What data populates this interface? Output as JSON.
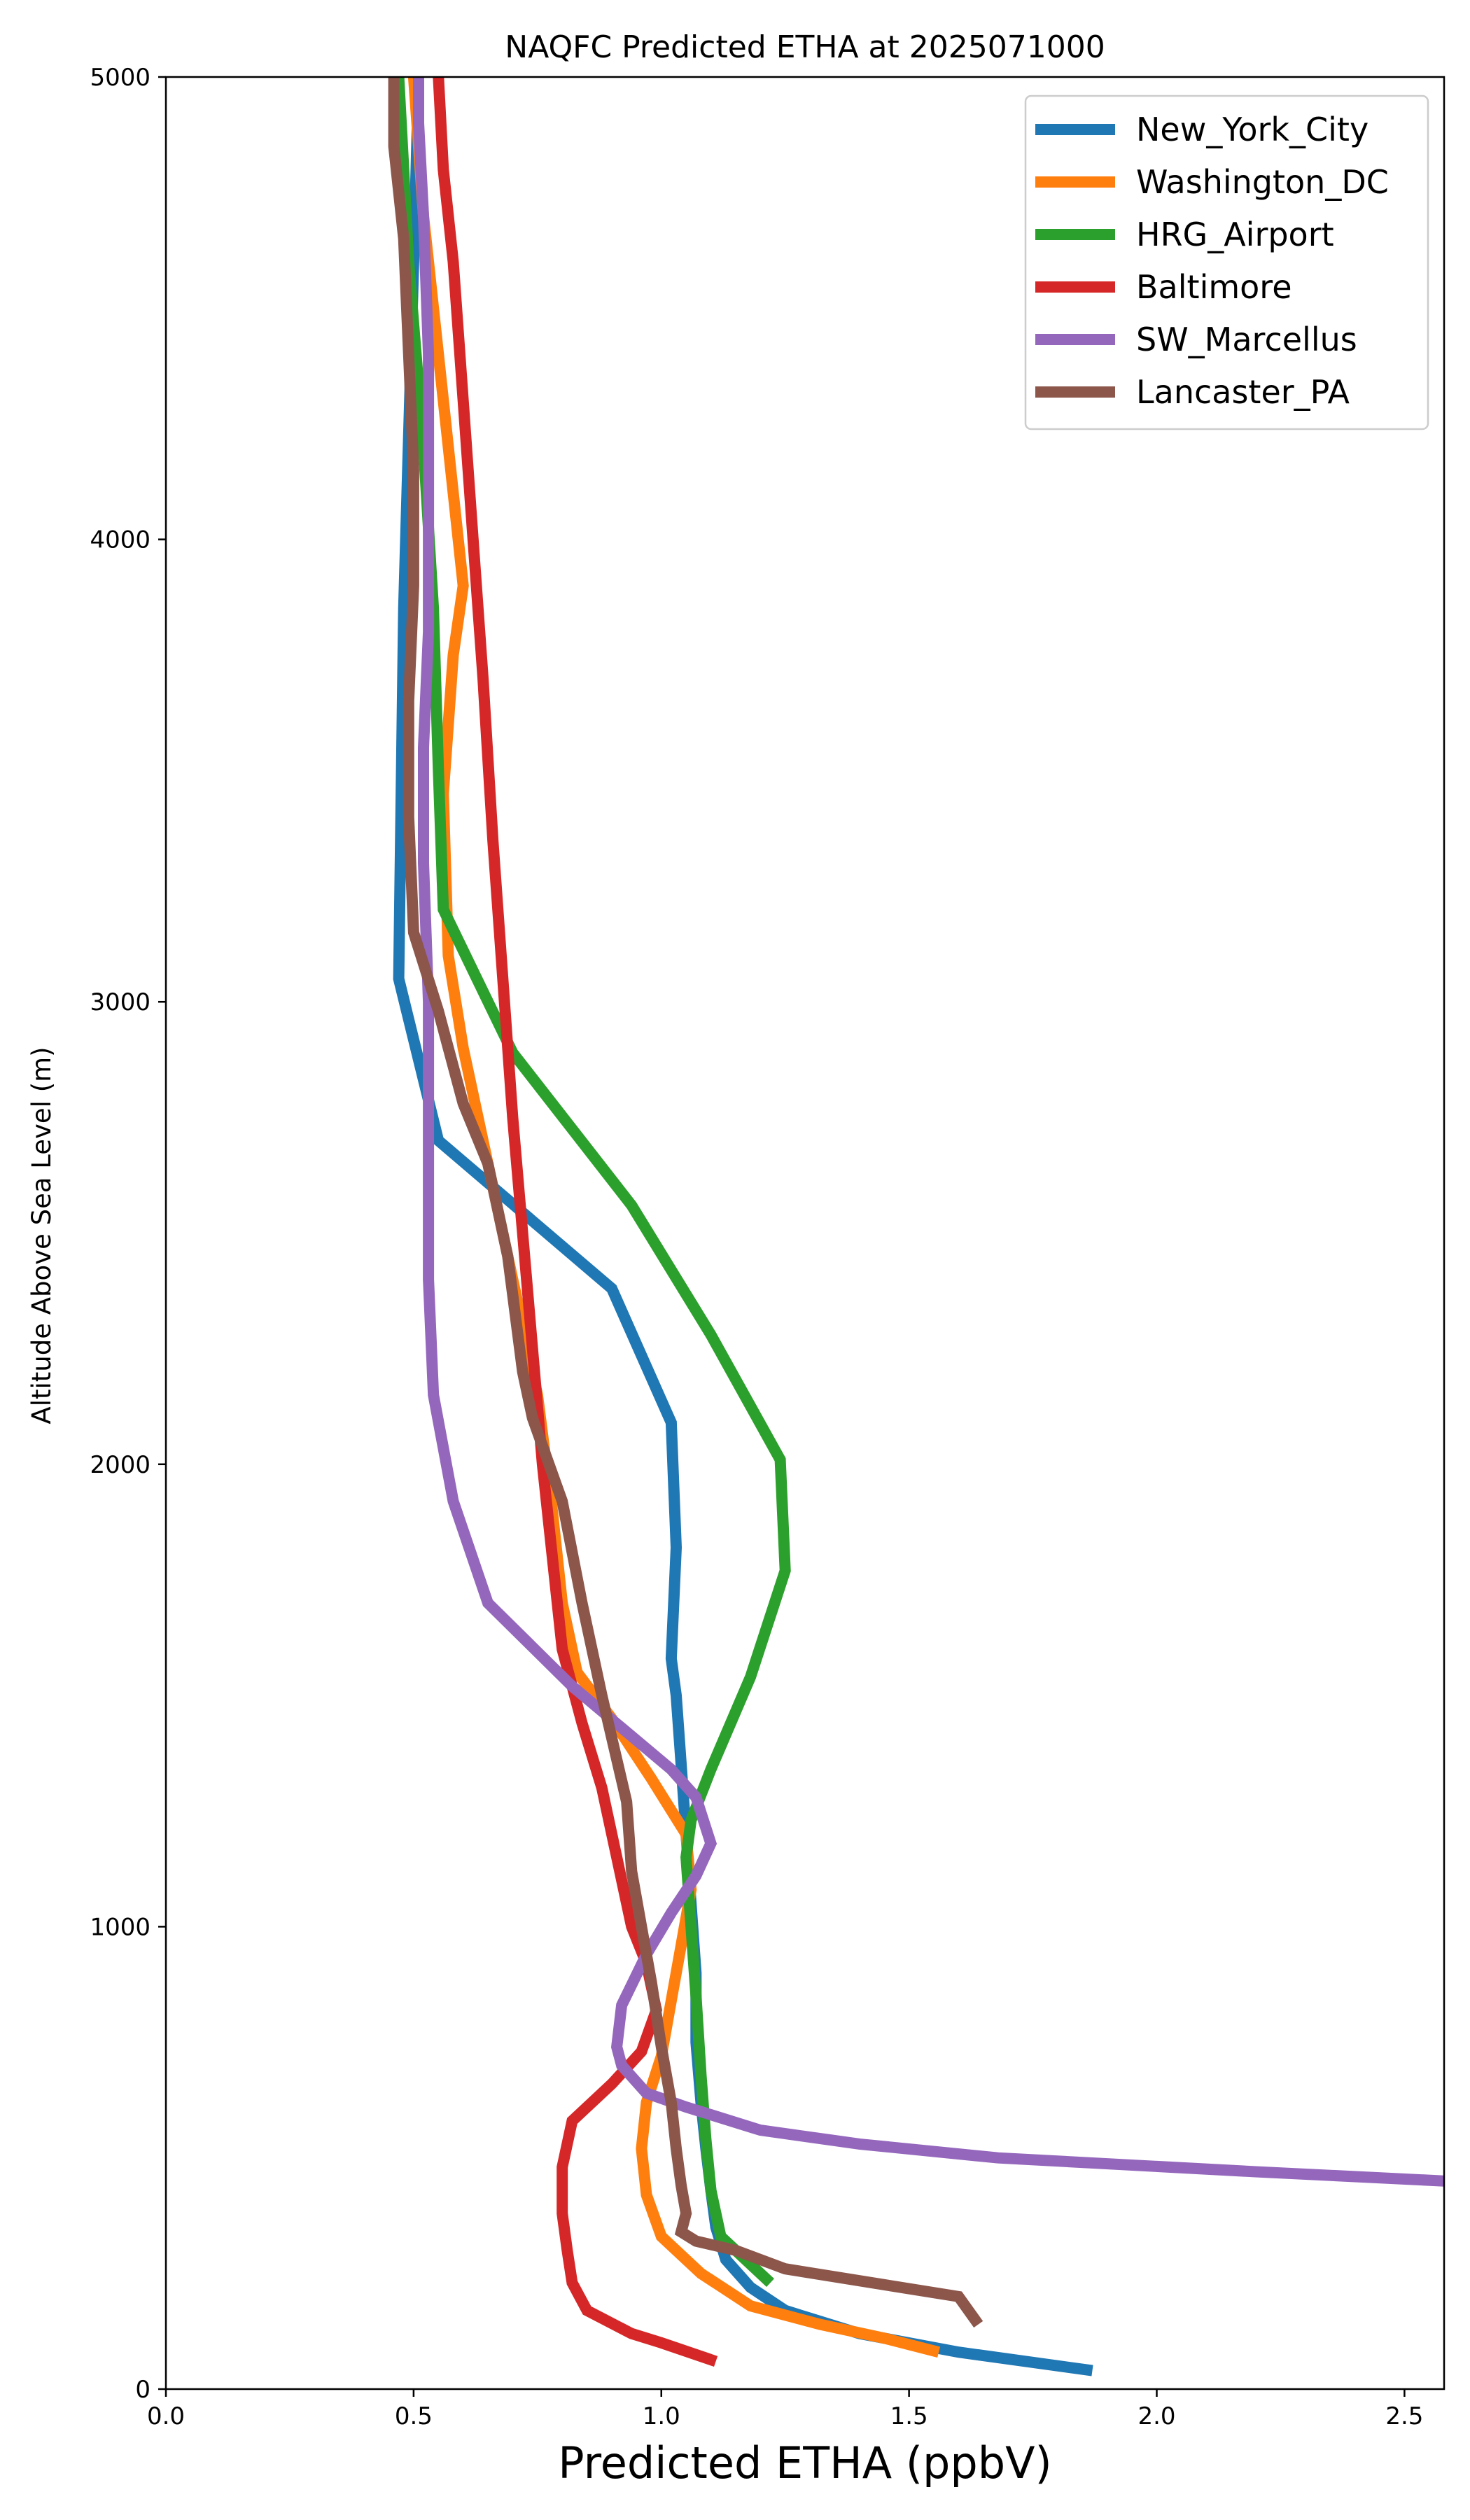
{
  "chart_data": {
    "type": "line",
    "title": "NAQFC Predicted ETHA at 2025071000",
    "xlabel": "Predicted ETHA (ppbV)",
    "ylabel": "Altitude Above Sea Level (m)",
    "xlim": [
      0,
      2.58
    ],
    "ylim": [
      0,
      5000
    ],
    "xticks": [
      0.0,
      0.5,
      1.0,
      1.5,
      2.0,
      2.5
    ],
    "xtick_labels": [
      "0.0",
      "0.5",
      "1.0",
      "1.5",
      "2.0",
      "2.5"
    ],
    "yticks": [
      0,
      1000,
      2000,
      3000,
      4000,
      5000
    ],
    "ytick_labels": [
      "0",
      "1000",
      "2000",
      "3000",
      "4000",
      "5000"
    ],
    "grid": false,
    "legend_position": "top-right",
    "series": [
      {
        "name": "New_York_City",
        "color": "#1f77b4",
        "points": [
          [
            1.87,
            40
          ],
          [
            1.6,
            80
          ],
          [
            1.4,
            120
          ],
          [
            1.25,
            170
          ],
          [
            1.18,
            220
          ],
          [
            1.13,
            280
          ],
          [
            1.11,
            350
          ],
          [
            1.1,
            430
          ],
          [
            1.09,
            520
          ],
          [
            1.08,
            620
          ],
          [
            1.07,
            750
          ],
          [
            1.07,
            900
          ],
          [
            1.06,
            1050
          ],
          [
            1.05,
            1200
          ],
          [
            1.04,
            1350
          ],
          [
            1.03,
            1500
          ],
          [
            1.02,
            1580
          ],
          [
            1.03,
            1820
          ],
          [
            1.02,
            2090
          ],
          [
            0.9,
            2380
          ],
          [
            0.55,
            2700
          ],
          [
            0.47,
            3050
          ],
          [
            0.48,
            3850
          ],
          [
            0.5,
            4600
          ],
          [
            0.51,
            5000
          ]
        ]
      },
      {
        "name": "Washington_DC",
        "color": "#ff7f0e",
        "points": [
          [
            1.56,
            80
          ],
          [
            1.45,
            110
          ],
          [
            1.32,
            140
          ],
          [
            1.18,
            180
          ],
          [
            1.08,
            250
          ],
          [
            1.0,
            330
          ],
          [
            0.97,
            420
          ],
          [
            0.96,
            520
          ],
          [
            0.97,
            620
          ],
          [
            1.0,
            720
          ],
          [
            1.02,
            840
          ],
          [
            1.04,
            960
          ],
          [
            1.06,
            1080
          ],
          [
            1.05,
            1200
          ],
          [
            0.98,
            1320
          ],
          [
            0.9,
            1450
          ],
          [
            0.83,
            1550
          ],
          [
            0.8,
            1700
          ],
          [
            0.78,
            1900
          ],
          [
            0.75,
            2150
          ],
          [
            0.7,
            2400
          ],
          [
            0.65,
            2650
          ],
          [
            0.6,
            2900
          ],
          [
            0.57,
            3100
          ],
          [
            0.56,
            3450
          ],
          [
            0.58,
            3750
          ],
          [
            0.6,
            3900
          ],
          [
            0.58,
            4100
          ],
          [
            0.55,
            4400
          ],
          [
            0.52,
            4700
          ],
          [
            0.5,
            5000
          ]
        ]
      },
      {
        "name": "HRG_Airport",
        "color": "#2ca02c",
        "points": [
          [
            1.22,
            230
          ],
          [
            1.12,
            330
          ],
          [
            1.1,
            430
          ],
          [
            1.09,
            540
          ],
          [
            1.08,
            680
          ],
          [
            1.07,
            850
          ],
          [
            1.06,
            1000
          ],
          [
            1.05,
            1150
          ],
          [
            1.06,
            1230
          ],
          [
            1.1,
            1340
          ],
          [
            1.18,
            1540
          ],
          [
            1.25,
            1770
          ],
          [
            1.24,
            2010
          ],
          [
            1.1,
            2280
          ],
          [
            0.94,
            2560
          ],
          [
            0.7,
            2890
          ],
          [
            0.56,
            3200
          ],
          [
            0.55,
            3500
          ],
          [
            0.54,
            3850
          ],
          [
            0.52,
            4200
          ],
          [
            0.49,
            4600
          ],
          [
            0.47,
            5000
          ]
        ]
      },
      {
        "name": "Baltimore",
        "color": "#d62728",
        "points": [
          [
            1.11,
            60
          ],
          [
            1.0,
            100
          ],
          [
            0.94,
            120
          ],
          [
            0.85,
            170
          ],
          [
            0.82,
            230
          ],
          [
            0.81,
            300
          ],
          [
            0.8,
            380
          ],
          [
            0.8,
            480
          ],
          [
            0.82,
            580
          ],
          [
            0.9,
            660
          ],
          [
            0.96,
            730
          ],
          [
            0.99,
            820
          ],
          [
            0.97,
            920
          ],
          [
            0.94,
            1000
          ],
          [
            0.91,
            1150
          ],
          [
            0.88,
            1300
          ],
          [
            0.84,
            1440
          ],
          [
            0.8,
            1600
          ],
          [
            0.78,
            1800
          ],
          [
            0.76,
            2000
          ],
          [
            0.74,
            2250
          ],
          [
            0.72,
            2500
          ],
          [
            0.7,
            2750
          ],
          [
            0.68,
            3050
          ],
          [
            0.66,
            3350
          ],
          [
            0.64,
            3700
          ],
          [
            0.62,
            4000
          ],
          [
            0.6,
            4300
          ],
          [
            0.58,
            4600
          ],
          [
            0.56,
            4800
          ],
          [
            0.55,
            5000
          ]
        ]
      },
      {
        "name": "SW_Marcellus",
        "color": "#9467bd",
        "points": [
          [
            2.58,
            450
          ],
          [
            2.2,
            470
          ],
          [
            1.68,
            500
          ],
          [
            1.4,
            530
          ],
          [
            1.2,
            560
          ],
          [
            1.05,
            610
          ],
          [
            0.97,
            640
          ],
          [
            0.92,
            700
          ],
          [
            0.91,
            740
          ],
          [
            0.92,
            830
          ],
          [
            0.97,
            940
          ],
          [
            1.02,
            1030
          ],
          [
            1.07,
            1110
          ],
          [
            1.1,
            1180
          ],
          [
            1.07,
            1280
          ],
          [
            1.02,
            1340
          ],
          [
            0.92,
            1430
          ],
          [
            0.82,
            1520
          ],
          [
            0.65,
            1700
          ],
          [
            0.58,
            1920
          ],
          [
            0.54,
            2150
          ],
          [
            0.53,
            2400
          ],
          [
            0.53,
            2700
          ],
          [
            0.53,
            3000
          ],
          [
            0.52,
            3300
          ],
          [
            0.52,
            3550
          ],
          [
            0.53,
            3800
          ],
          [
            0.53,
            4100
          ],
          [
            0.53,
            4400
          ],
          [
            0.52,
            4700
          ],
          [
            0.51,
            4900
          ],
          [
            0.51,
            5000
          ]
        ]
      },
      {
        "name": "Lancaster_PA",
        "color": "#8c564b",
        "points": [
          [
            1.64,
            140
          ],
          [
            1.6,
            200
          ],
          [
            1.25,
            260
          ],
          [
            1.15,
            300
          ],
          [
            1.07,
            320
          ],
          [
            1.04,
            340
          ],
          [
            1.05,
            380
          ],
          [
            1.04,
            440
          ],
          [
            1.03,
            520
          ],
          [
            1.02,
            620
          ],
          [
            1.0,
            740
          ],
          [
            0.98,
            880
          ],
          [
            0.96,
            1000
          ],
          [
            0.94,
            1120
          ],
          [
            0.93,
            1270
          ],
          [
            0.88,
            1500
          ],
          [
            0.84,
            1700
          ],
          [
            0.8,
            1920
          ],
          [
            0.74,
            2100
          ],
          [
            0.72,
            2200
          ],
          [
            0.69,
            2450
          ],
          [
            0.65,
            2650
          ],
          [
            0.6,
            2780
          ],
          [
            0.55,
            2980
          ],
          [
            0.5,
            3150
          ],
          [
            0.49,
            3400
          ],
          [
            0.49,
            3650
          ],
          [
            0.5,
            3900
          ],
          [
            0.5,
            4150
          ],
          [
            0.49,
            4400
          ],
          [
            0.48,
            4650
          ],
          [
            0.46,
            4850
          ],
          [
            0.46,
            5000
          ]
        ]
      }
    ]
  }
}
